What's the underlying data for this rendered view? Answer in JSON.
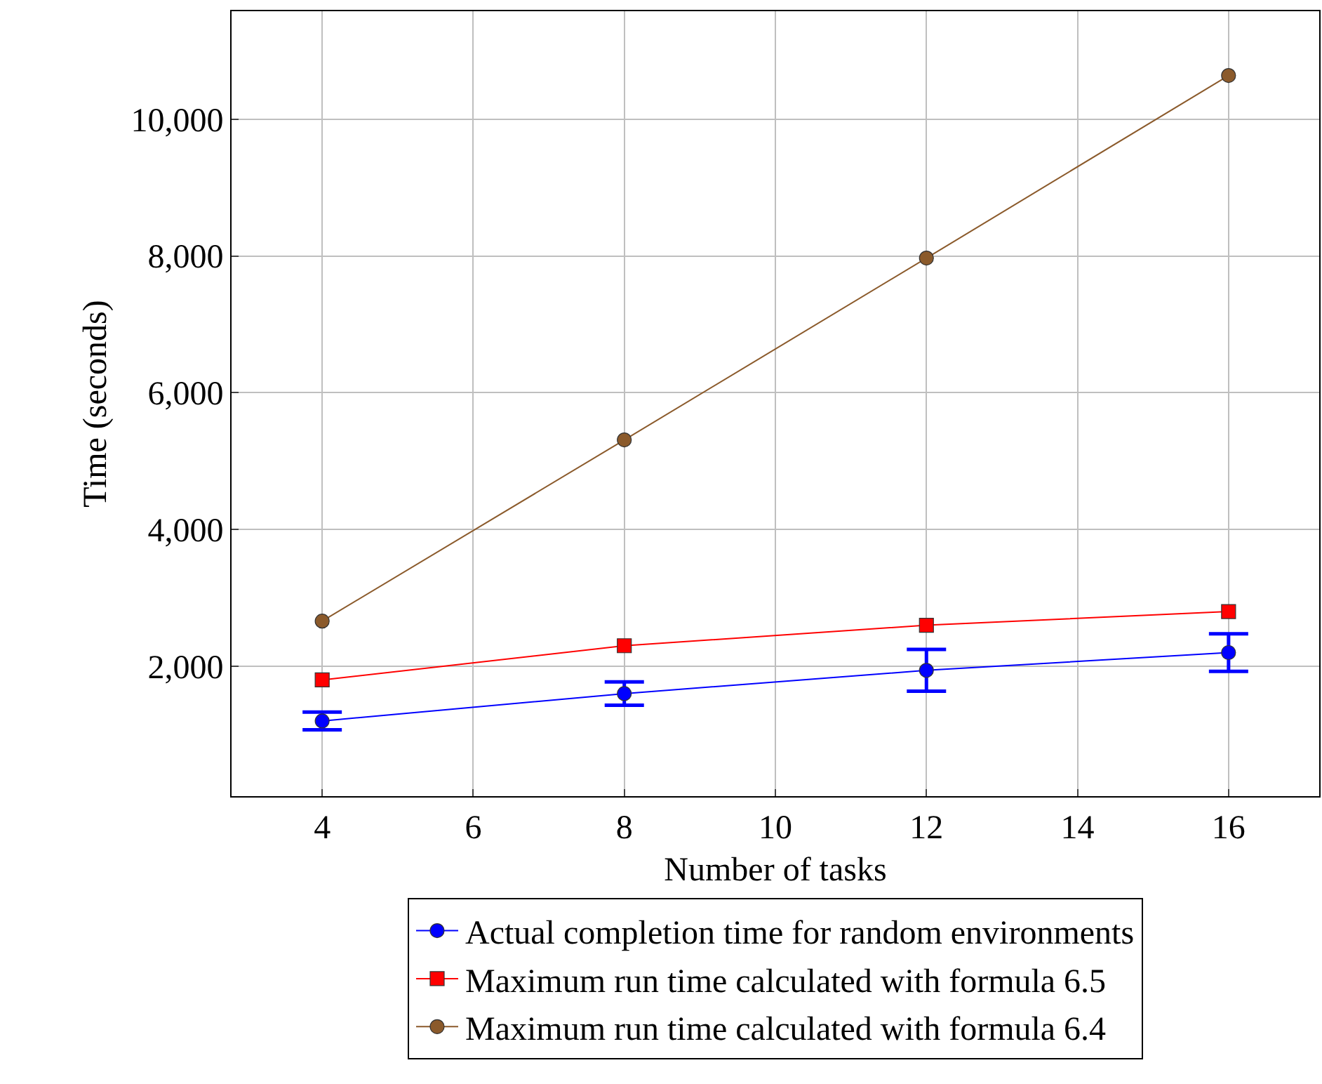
{
  "chart_data": {
    "type": "line",
    "xlabel": "Number of tasks",
    "ylabel": "Time (seconds)",
    "x": [
      4,
      8,
      12,
      16
    ],
    "series": [
      {
        "name": "Actual completion time for random environments",
        "color": "#0000ff",
        "values": [
          1200,
          1600,
          1940,
          2200
        ],
        "errors": [
          130,
          170,
          305,
          275
        ],
        "marker": "circle"
      },
      {
        "name": "Maximum run time calculated with formula 6.5",
        "color": "#ff0000",
        "values": [
          1800,
          2300,
          2600,
          2800
        ],
        "marker": "square"
      },
      {
        "name": "Maximum run time calculated with formula 6.4",
        "color": "#8b5a2b",
        "values": [
          2660,
          5310,
          7970,
          10640
        ],
        "marker": "circle"
      }
    ],
    "xlim": [
      2.8,
      17.2
    ],
    "xticks": [
      4,
      6,
      8,
      10,
      12,
      14,
      16
    ],
    "ylim": [
      100,
      11580
    ],
    "yticks": [
      {
        "value": 2000,
        "label": "2,000"
      },
      {
        "value": 4000,
        "label": "4,000"
      },
      {
        "value": 6000,
        "label": "6,000"
      },
      {
        "value": 8000,
        "label": "8,000"
      },
      {
        "value": 10000,
        "label": "10,000"
      }
    ],
    "grid": true,
    "legend": "bottom",
    "line_style": "solid"
  }
}
